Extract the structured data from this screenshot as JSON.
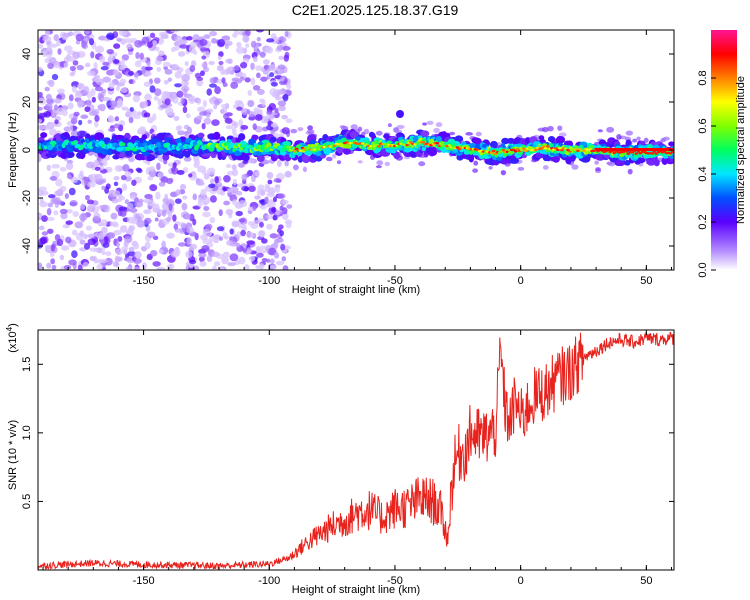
{
  "title": "C2E1.2025.125.18.37.G19",
  "chart_data": [
    {
      "type": "heatmap",
      "xlabel": "Height of straight line (km)",
      "ylabel": "Frequency (Hz)",
      "xlim": [
        -192,
        61
      ],
      "ylim": [
        -50,
        50
      ],
      "x_ticks": [
        "-150",
        "-100",
        "-50",
        "0",
        "50"
      ],
      "y_ticks": [
        "40",
        "20",
        "0",
        "-20",
        "-40"
      ],
      "colorbar": {
        "label": "Normalized spectral amplitude",
        "range": [
          0,
          1
        ],
        "ticks": [
          "0.0",
          "0.2",
          "0.4",
          "0.6",
          "0.8"
        ]
      },
      "ridge": {
        "x": [
          -190,
          -170,
          -150,
          -130,
          -110,
          -100,
          -90,
          -80,
          -70,
          -60,
          -50,
          -40,
          -30,
          -20,
          -10,
          0,
          10,
          20,
          30,
          40,
          50,
          60
        ],
        "freq_hz": [
          2,
          2,
          1,
          2,
          1,
          1,
          0,
          1,
          3,
          2,
          2,
          3,
          2,
          0,
          -1,
          0,
          1,
          0,
          0,
          -1,
          -1,
          -1
        ]
      },
      "grid": false
    },
    {
      "type": "line",
      "xlabel": "Height of straight line (km)",
      "ylabel": "SNR (10 * v/v)",
      "y_multiplier": "(x10",
      "y_multiplier_exp": "4",
      "y_multiplier_close": ")",
      "xlim": [
        -192,
        61
      ],
      "ylim": [
        0,
        17500
      ],
      "x_ticks": [
        "-150",
        "-100",
        "-50",
        "0",
        "50"
      ],
      "y_ticks": [
        "0.5",
        "1.0",
        "1.5"
      ],
      "series": [
        {
          "color": "#e8231d",
          "x": [
            -192,
            -170,
            -150,
            -120,
            -100,
            -92,
            -85,
            -80,
            -75,
            -70,
            -65,
            -60,
            -55,
            -50,
            -45,
            -40,
            -35,
            -32,
            -29,
            -27,
            -25,
            -22,
            -20,
            -15,
            -10,
            -8,
            -6,
            -4,
            -2,
            0,
            5,
            10,
            15,
            20,
            25,
            30,
            35,
            40,
            45,
            50,
            55,
            60
          ],
          "values": [
            300,
            500,
            400,
            300,
            450,
            900,
            2000,
            2600,
            3200,
            3600,
            4200,
            4400,
            3800,
            4500,
            4600,
            5200,
            5000,
            4400,
            2200,
            7000,
            8500,
            8600,
            10000,
            9600,
            10200,
            16000,
            11500,
            10800,
            12500,
            11000,
            12600,
            13000,
            14000,
            14500,
            15500,
            16000,
            16600,
            16800,
            16600,
            16900,
            16800,
            16900
          ]
        }
      ],
      "grid": false
    }
  ]
}
